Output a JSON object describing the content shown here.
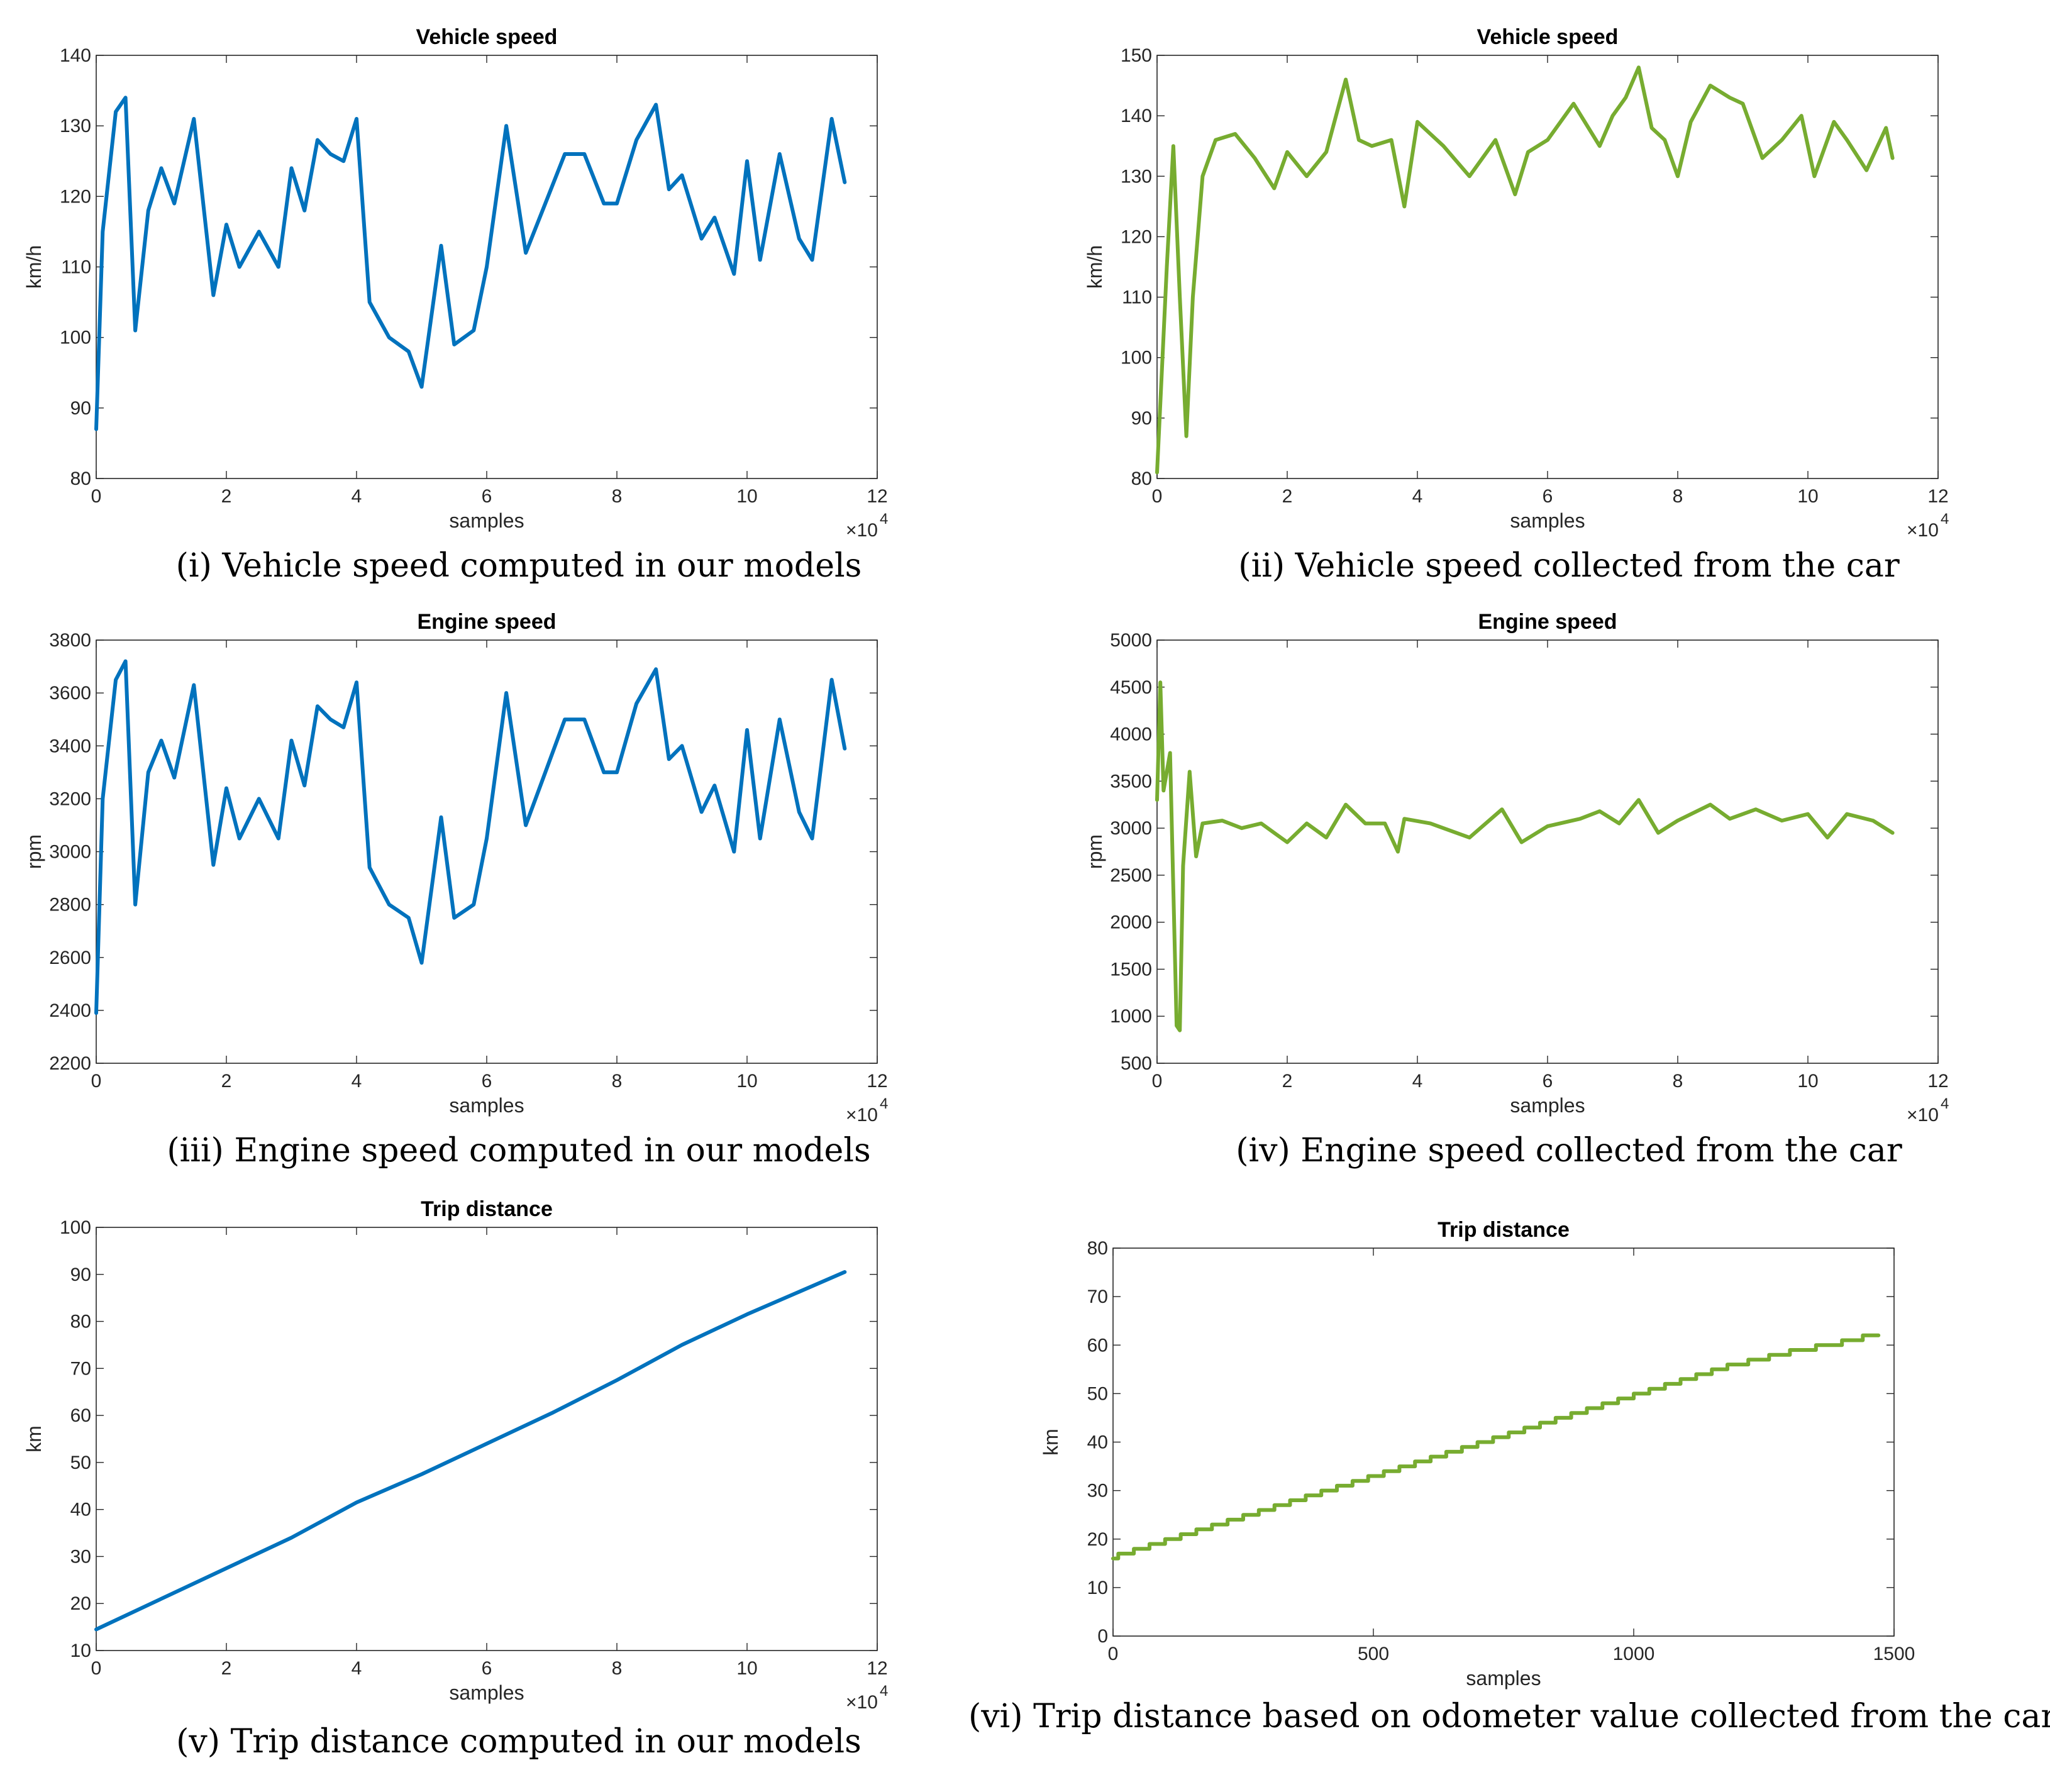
{
  "colors": {
    "model": "#0072BD",
    "car": "#77AC30",
    "axis": "#262626"
  },
  "chart_data": [
    {
      "type": "line",
      "title": "Vehicle speed",
      "xlabel": "samples",
      "ylabel": "km/h",
      "x_exponent": "×10",
      "x_exponent_power": "4",
      "xlim": [
        0,
        12
      ],
      "ylim": [
        80,
        140
      ],
      "xticks": [
        "0",
        "2",
        "4",
        "6",
        "8",
        "10",
        "12"
      ],
      "yticks": [
        "80",
        "90",
        "100",
        "110",
        "120",
        "130",
        "140"
      ],
      "caption": "(i) Vehicle speed computed in our models",
      "series": [
        {
          "name": "Vehicle speed (model)",
          "color": "#0072BD",
          "x": [
            0,
            0.1,
            0.3,
            0.45,
            0.6,
            0.8,
            1.0,
            1.2,
            1.5,
            1.8,
            2.0,
            2.2,
            2.5,
            2.8,
            3.0,
            3.2,
            3.4,
            3.6,
            3.8,
            4.0,
            4.2,
            4.5,
            4.8,
            5.0,
            5.3,
            5.5,
            5.8,
            6.0,
            6.3,
            6.6,
            6.9,
            7.2,
            7.5,
            7.8,
            8.0,
            8.3,
            8.6,
            8.8,
            9.0,
            9.3,
            9.5,
            9.8,
            10.0,
            10.2,
            10.5,
            10.8,
            11.0,
            11.3,
            11.5
          ],
          "values": [
            87,
            115,
            132,
            134,
            101,
            118,
            124,
            119,
            131,
            106,
            116,
            110,
            115,
            110,
            124,
            118,
            128,
            126,
            125,
            131,
            105,
            100,
            98,
            93,
            113,
            99,
            101,
            110,
            130,
            112,
            119,
            126,
            126,
            119,
            119,
            128,
            133,
            121,
            123,
            114,
            117,
            109,
            125,
            111,
            126,
            114,
            111,
            131,
            122
          ]
        }
      ]
    },
    {
      "type": "line",
      "title": "Vehicle speed",
      "xlabel": "samples",
      "ylabel": "km/h",
      "x_exponent": "×10",
      "x_exponent_power": "4",
      "xlim": [
        0,
        12
      ],
      "ylim": [
        80,
        150
      ],
      "xticks": [
        "0",
        "2",
        "4",
        "6",
        "8",
        "10",
        "12"
      ],
      "yticks": [
        "80",
        "90",
        "100",
        "110",
        "120",
        "130",
        "140",
        "150"
      ],
      "caption": "(ii) Vehicle speed collected from the car",
      "series": [
        {
          "name": "Vehicle speed (car)",
          "color": "#77AC30",
          "x": [
            0,
            0.15,
            0.25,
            0.35,
            0.45,
            0.55,
            0.7,
            0.9,
            1.2,
            1.5,
            1.8,
            2.0,
            2.3,
            2.6,
            2.9,
            3.1,
            3.3,
            3.6,
            3.8,
            4.0,
            4.4,
            4.8,
            5.2,
            5.5,
            5.7,
            6.0,
            6.4,
            6.8,
            7.0,
            7.2,
            7.4,
            7.6,
            7.8,
            8.0,
            8.2,
            8.5,
            8.8,
            9.0,
            9.3,
            9.6,
            9.9,
            10.1,
            10.4,
            10.6,
            10.9,
            11.2,
            11.3
          ],
          "values": [
            81,
            115,
            135,
            110,
            87,
            110,
            130,
            136,
            137,
            133,
            128,
            134,
            130,
            134,
            146,
            136,
            135,
            136,
            125,
            139,
            135,
            130,
            136,
            127,
            134,
            136,
            142,
            135,
            140,
            143,
            148,
            138,
            136,
            130,
            139,
            145,
            143,
            142,
            133,
            136,
            140,
            130,
            139,
            136,
            131,
            138,
            133
          ]
        }
      ]
    },
    {
      "type": "line",
      "title": "Engine speed",
      "xlabel": "samples",
      "ylabel": "rpm",
      "x_exponent": "×10",
      "x_exponent_power": "4",
      "xlim": [
        0,
        12
      ],
      "ylim": [
        2200,
        3800
      ],
      "xticks": [
        "0",
        "2",
        "4",
        "6",
        "8",
        "10",
        "12"
      ],
      "yticks": [
        "2200",
        "2400",
        "2600",
        "2800",
        "3000",
        "3200",
        "3400",
        "3600",
        "3800"
      ],
      "caption": "(iii) Engine speed computed in our models",
      "series": [
        {
          "name": "Engine speed (model)",
          "color": "#0072BD",
          "x": [
            0,
            0.1,
            0.3,
            0.45,
            0.6,
            0.8,
            1.0,
            1.2,
            1.5,
            1.8,
            2.0,
            2.2,
            2.5,
            2.8,
            3.0,
            3.2,
            3.4,
            3.6,
            3.8,
            4.0,
            4.2,
            4.5,
            4.8,
            5.0,
            5.3,
            5.5,
            5.8,
            6.0,
            6.3,
            6.6,
            6.9,
            7.2,
            7.5,
            7.8,
            8.0,
            8.3,
            8.6,
            8.8,
            9.0,
            9.3,
            9.5,
            9.8,
            10.0,
            10.2,
            10.5,
            10.8,
            11.0,
            11.3,
            11.5
          ],
          "values": [
            2390,
            3200,
            3650,
            3720,
            2800,
            3300,
            3420,
            3280,
            3630,
            2950,
            3240,
            3050,
            3200,
            3050,
            3420,
            3250,
            3550,
            3500,
            3470,
            3640,
            2940,
            2800,
            2750,
            2580,
            3130,
            2750,
            2800,
            3050,
            3600,
            3100,
            3300,
            3500,
            3500,
            3300,
            3300,
            3560,
            3690,
            3350,
            3400,
            3150,
            3250,
            3000,
            3460,
            3050,
            3500,
            3150,
            3050,
            3650,
            3390
          ]
        }
      ]
    },
    {
      "type": "line",
      "title": "Engine speed",
      "xlabel": "samples",
      "ylabel": "rpm",
      "x_exponent": "×10",
      "x_exponent_power": "4",
      "xlim": [
        0,
        12
      ],
      "ylim": [
        500,
        5000
      ],
      "xticks": [
        "0",
        "2",
        "4",
        "6",
        "8",
        "10",
        "12"
      ],
      "yticks": [
        "500",
        "1000",
        "1500",
        "2000",
        "2500",
        "3000",
        "3500",
        "4000",
        "4500",
        "5000"
      ],
      "caption": "(iv) Engine speed collected from the car",
      "series": [
        {
          "name": "Engine speed (car)",
          "color": "#77AC30",
          "x": [
            0,
            0.05,
            0.1,
            0.2,
            0.3,
            0.35,
            0.4,
            0.5,
            0.6,
            0.7,
            1.0,
            1.3,
            1.6,
            2.0,
            2.3,
            2.6,
            2.9,
            3.2,
            3.5,
            3.7,
            3.8,
            4.2,
            4.8,
            5.3,
            5.6,
            6.0,
            6.5,
            6.8,
            7.1,
            7.4,
            7.7,
            8.0,
            8.5,
            8.8,
            9.2,
            9.6,
            10.0,
            10.3,
            10.6,
            11.0,
            11.3
          ],
          "values": [
            3300,
            4550,
            3400,
            3800,
            900,
            850,
            2600,
            3600,
            2700,
            3050,
            3080,
            3000,
            3050,
            2850,
            3050,
            2900,
            3250,
            3050,
            3050,
            2750,
            3100,
            3050,
            2900,
            3200,
            2850,
            3020,
            3100,
            3180,
            3050,
            3300,
            2950,
            3080,
            3250,
            3100,
            3200,
            3080,
            3150,
            2900,
            3150,
            3080,
            2950
          ]
        }
      ]
    },
    {
      "type": "line",
      "title": "Trip distance",
      "xlabel": "samples",
      "ylabel": "km",
      "x_exponent": "×10",
      "x_exponent_power": "4",
      "xlim": [
        0,
        12
      ],
      "ylim": [
        10,
        100
      ],
      "xticks": [
        "0",
        "2",
        "4",
        "6",
        "8",
        "10",
        "12"
      ],
      "yticks": [
        "10",
        "20",
        "30",
        "40",
        "50",
        "60",
        "70",
        "80",
        "90",
        "100"
      ],
      "caption": "(v) Trip distance computed in our models",
      "series": [
        {
          "name": "Trip distance (model)",
          "color": "#0072BD",
          "x": [
            0,
            1,
            2,
            3,
            4,
            5,
            6,
            7,
            8,
            9,
            10,
            11,
            11.5
          ],
          "values": [
            14.5,
            21,
            27.5,
            34,
            41.5,
            47.5,
            54,
            60.5,
            67.5,
            75,
            81.5,
            87.5,
            90.5
          ]
        }
      ]
    },
    {
      "type": "line",
      "title": "Trip distance",
      "xlabel": "samples",
      "ylabel": "km",
      "xlim": [
        0,
        1500
      ],
      "ylim": [
        0,
        80
      ],
      "xticks": [
        "0",
        "500",
        "1000",
        "1500"
      ],
      "yticks": [
        "0",
        "10",
        "20",
        "30",
        "40",
        "50",
        "60",
        "70",
        "80"
      ],
      "caption": "(vi) Trip distance based on odometer value collected from the car",
      "series": [
        {
          "name": "Trip distance (car, odometer)",
          "color": "#77AC30",
          "step": true,
          "x": [
            0,
            10,
            40,
            70,
            100,
            130,
            160,
            190,
            220,
            250,
            280,
            310,
            340,
            370,
            400,
            430,
            460,
            490,
            520,
            550,
            580,
            610,
            640,
            670,
            700,
            730,
            760,
            790,
            820,
            850,
            880,
            910,
            940,
            970,
            1000,
            1030,
            1060,
            1090,
            1120,
            1150,
            1180,
            1220,
            1260,
            1300,
            1350,
            1400,
            1440
          ],
          "values": [
            16,
            17,
            18,
            19,
            20,
            21,
            22,
            23,
            24,
            25,
            26,
            27,
            28,
            29,
            30,
            31,
            32,
            33,
            34,
            35,
            36,
            37,
            38,
            39,
            40,
            41,
            42,
            43,
            44,
            45,
            46,
            47,
            48,
            49,
            50,
            51,
            52,
            53,
            54,
            55,
            56,
            57,
            58,
            59,
            60,
            61,
            62
          ]
        }
      ]
    }
  ]
}
